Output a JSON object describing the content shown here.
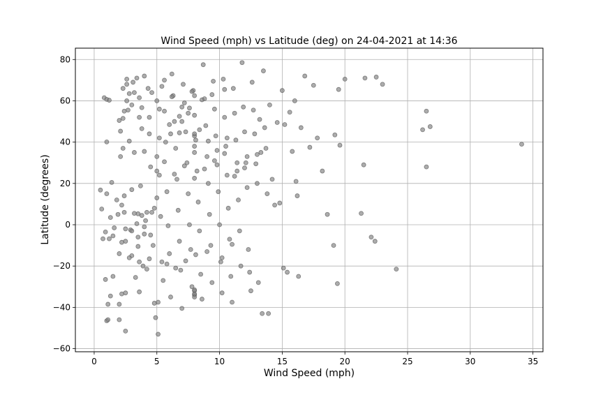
{
  "chart_data": {
    "type": "scatter",
    "title": "Wind Speed (mph) vs Latitude (deg) on 24-04-2021 at 14:36",
    "xlabel": "Wind Speed (mph)",
    "ylabel": "Latitude (degrees)",
    "xlim": [
      -1.5,
      35.8
    ],
    "ylim": [
      -61.5,
      85.5
    ],
    "xticks": [
      0,
      5,
      10,
      15,
      20,
      25,
      30,
      35
    ],
    "yticks": [
      -60,
      -40,
      -20,
      0,
      20,
      40,
      60,
      80
    ],
    "grid": true,
    "marker_color": "#808080",
    "points": [
      [
        0.5,
        16.8
      ],
      [
        0.6,
        7.6
      ],
      [
        0.7,
        -6.8
      ],
      [
        0.8,
        61.5
      ],
      [
        0.9,
        -26.5
      ],
      [
        0.9,
        -3.5
      ],
      [
        1.0,
        60.7
      ],
      [
        1.0,
        40.1
      ],
      [
        1.0,
        15.0
      ],
      [
        1.0,
        -46.5
      ],
      [
        1.1,
        -46.0
      ],
      [
        1.1,
        -38.5
      ],
      [
        1.2,
        -6.8
      ],
      [
        1.2,
        60.3
      ],
      [
        1.3,
        3.5
      ],
      [
        1.3,
        -34.5
      ],
      [
        1.4,
        20.5
      ],
      [
        1.5,
        -5.4
      ],
      [
        1.5,
        -25.0
      ],
      [
        1.6,
        -1.5
      ],
      [
        1.8,
        12.0
      ],
      [
        1.9,
        5.0
      ],
      [
        2.0,
        -14.0
      ],
      [
        2.0,
        -38.5
      ],
      [
        2.0,
        -46.0
      ],
      [
        2.1,
        45.3
      ],
      [
        2.1,
        33.0
      ],
      [
        2.2,
        9.5
      ],
      [
        2.2,
        -33.5
      ],
      [
        2.3,
        66.0
      ],
      [
        2.3,
        51.5
      ],
      [
        2.3,
        37.0
      ],
      [
        2.4,
        14.0
      ],
      [
        2.4,
        6.0
      ],
      [
        2.5,
        -8.0
      ],
      [
        2.5,
        -33.0
      ],
      [
        2.5,
        -51.5
      ],
      [
        2.6,
        70.5
      ],
      [
        2.6,
        60.0
      ],
      [
        2.7,
        55.5
      ],
      [
        2.8,
        63.5
      ],
      [
        2.8,
        40.5
      ],
      [
        2.9,
        -2.5
      ],
      [
        3.0,
        17.0
      ],
      [
        3.0,
        -15.0
      ],
      [
        3.1,
        69.0
      ],
      [
        3.2,
        64.0
      ],
      [
        3.2,
        35.0
      ],
      [
        3.3,
        -25.5
      ],
      [
        3.4,
        0.5
      ],
      [
        3.5,
        5.3
      ],
      [
        3.5,
        -10.5
      ],
      [
        3.6,
        52.0
      ],
      [
        3.6,
        -32.5
      ],
      [
        3.7,
        18.8
      ],
      [
        3.8,
        56.7
      ],
      [
        3.8,
        46.5
      ],
      [
        3.9,
        -20.0
      ],
      [
        4.0,
        72.0
      ],
      [
        4.0,
        35.5
      ],
      [
        4.0,
        -4.5
      ],
      [
        4.1,
        2.0
      ],
      [
        4.2,
        -21.5
      ],
      [
        4.3,
        66.0
      ],
      [
        4.4,
        44.0
      ],
      [
        4.5,
        28.0
      ],
      [
        4.6,
        6.0
      ],
      [
        4.7,
        -10.0
      ],
      [
        4.8,
        -38.0
      ],
      [
        4.9,
        -45.0
      ],
      [
        5.0,
        60.0
      ],
      [
        5.0,
        33.0
      ],
      [
        5.0,
        13.0
      ],
      [
        5.1,
        -53.0
      ],
      [
        5.1,
        -37.5
      ],
      [
        5.2,
        42.0
      ],
      [
        5.2,
        24.0
      ],
      [
        5.3,
        4.0
      ],
      [
        5.4,
        -18.0
      ],
      [
        5.5,
        -27.0
      ],
      [
        5.6,
        70.0
      ],
      [
        5.6,
        55.0
      ],
      [
        5.7,
        40.0
      ],
      [
        5.8,
        16.0
      ],
      [
        5.9,
        -0.5
      ],
      [
        6.0,
        -14.0
      ],
      [
        6.1,
        -35.0
      ],
      [
        6.2,
        73.0
      ],
      [
        6.3,
        62.5
      ],
      [
        6.4,
        50.0
      ],
      [
        6.5,
        37.0
      ],
      [
        6.6,
        22.0
      ],
      [
        6.7,
        7.0
      ],
      [
        6.8,
        -8.0
      ],
      [
        6.9,
        -22.0
      ],
      [
        7.0,
        -40.5
      ],
      [
        7.1,
        68.0
      ],
      [
        7.2,
        59.0
      ],
      [
        7.3,
        45.0
      ],
      [
        7.4,
        30.0
      ],
      [
        7.5,
        15.0
      ],
      [
        7.6,
        0.0
      ],
      [
        7.7,
        -12.0
      ],
      [
        7.8,
        -30.0
      ],
      [
        7.9,
        65.0
      ],
      [
        8.0,
        53.0
      ],
      [
        8.1,
        41.0
      ],
      [
        8.2,
        26.0
      ],
      [
        8.3,
        11.0
      ],
      [
        8.4,
        -3.0
      ],
      [
        8.5,
        -24.0
      ],
      [
        8.6,
        -36.0
      ],
      [
        8.7,
        77.5
      ],
      [
        8.8,
        61.0
      ],
      [
        8.9,
        48.0
      ],
      [
        9.0,
        33.0
      ],
      [
        9.1,
        20.0
      ],
      [
        9.2,
        5.0
      ],
      [
        9.3,
        -10.0
      ],
      [
        9.4,
        -28.0
      ],
      [
        9.5,
        69.5
      ],
      [
        9.6,
        56.0
      ],
      [
        9.7,
        43.0
      ],
      [
        9.8,
        29.0
      ],
      [
        9.9,
        16.0
      ],
      [
        10.0,
        0.0
      ],
      [
        10.1,
        -18.0
      ],
      [
        10.2,
        -33.0
      ],
      [
        10.3,
        70.5
      ],
      [
        10.4,
        52.0
      ],
      [
        10.5,
        38.0
      ],
      [
        10.6,
        24.0
      ],
      [
        10.7,
        8.0
      ],
      [
        10.8,
        -7.0
      ],
      [
        10.9,
        -25.0
      ],
      [
        11.0,
        -37.5
      ],
      [
        11.1,
        66.0
      ],
      [
        11.2,
        54.0
      ],
      [
        11.3,
        41.0
      ],
      [
        11.4,
        26.0
      ],
      [
        11.5,
        12.0
      ],
      [
        11.6,
        -3.0
      ],
      [
        11.7,
        -20.0
      ],
      [
        11.8,
        78.5
      ],
      [
        11.9,
        57.0
      ],
      [
        12.0,
        45.0
      ],
      [
        12.1,
        30.0
      ],
      [
        12.2,
        18.0
      ],
      [
        12.3,
        -12.0
      ],
      [
        12.4,
        -23.0
      ],
      [
        12.5,
        -32.0
      ],
      [
        12.6,
        69.0
      ],
      [
        12.7,
        55.5
      ],
      [
        12.8,
        44.0
      ],
      [
        12.9,
        29.5
      ],
      [
        13.0,
        20.0
      ],
      [
        13.1,
        -28.0
      ],
      [
        13.2,
        51.0
      ],
      [
        13.3,
        35.0
      ],
      [
        13.4,
        -43.0
      ],
      [
        13.5,
        74.5
      ],
      [
        13.6,
        47.0
      ],
      [
        13.7,
        37.0
      ],
      [
        13.8,
        15.0
      ],
      [
        13.9,
        -43.0
      ],
      [
        14.0,
        58.0
      ],
      [
        14.2,
        22.0
      ],
      [
        14.4,
        9.5
      ],
      [
        14.6,
        49.5
      ],
      [
        14.8,
        10.5
      ],
      [
        15.0,
        65.0
      ],
      [
        15.1,
        -21.0
      ],
      [
        15.2,
        48.5
      ],
      [
        15.4,
        -23.0
      ],
      [
        15.6,
        54.5
      ],
      [
        15.8,
        35.5
      ],
      [
        16.0,
        60.0
      ],
      [
        16.1,
        21.0
      ],
      [
        16.2,
        14.0
      ],
      [
        16.3,
        -25.0
      ],
      [
        16.5,
        47.0
      ],
      [
        16.8,
        72.0
      ],
      [
        17.2,
        37.5
      ],
      [
        17.5,
        67.5
      ],
      [
        17.8,
        42.0
      ],
      [
        18.2,
        26.0
      ],
      [
        18.6,
        5.0
      ],
      [
        19.1,
        -10.0
      ],
      [
        19.2,
        43.5
      ],
      [
        19.4,
        -28.5
      ],
      [
        19.5,
        65.5
      ],
      [
        19.6,
        38.5
      ],
      [
        20.0,
        70.5
      ],
      [
        21.3,
        5.5
      ],
      [
        21.5,
        29.0
      ],
      [
        21.6,
        71.0
      ],
      [
        22.1,
        -6.0
      ],
      [
        22.4,
        -8.0
      ],
      [
        22.5,
        71.5
      ],
      [
        23.0,
        68.0
      ],
      [
        24.1,
        -21.5
      ],
      [
        26.2,
        46.0
      ],
      [
        26.5,
        55.0
      ],
      [
        26.5,
        28.0
      ],
      [
        26.8,
        47.5
      ],
      [
        34.1,
        39.0
      ],
      [
        2.2,
        -8.5
      ],
      [
        2.5,
        -2.0
      ],
      [
        3.0,
        -3.0
      ],
      [
        3.5,
        -6.0
      ],
      [
        4.0,
        -1.0
      ],
      [
        4.5,
        -5.0
      ],
      [
        3.2,
        5.5
      ],
      [
        3.8,
        4.5
      ],
      [
        4.2,
        6.0
      ],
      [
        4.8,
        8.0
      ],
      [
        2.8,
        -16.0
      ],
      [
        3.6,
        -18.0
      ],
      [
        4.4,
        -16.5
      ],
      [
        5.8,
        -19.0
      ],
      [
        6.5,
        -21.0
      ],
      [
        7.3,
        -17.5
      ],
      [
        8.1,
        -14.5
      ],
      [
        9.0,
        -13.0
      ],
      [
        10.2,
        -16.0
      ],
      [
        11.0,
        -9.5
      ],
      [
        2.0,
        50.5
      ],
      [
        2.4,
        55.0
      ],
      [
        3.0,
        58.0
      ],
      [
        3.6,
        61.5
      ],
      [
        4.4,
        52.0
      ],
      [
        5.2,
        56.0
      ],
      [
        6.0,
        48.5
      ],
      [
        6.8,
        52.5
      ],
      [
        7.6,
        56.5
      ],
      [
        8.4,
        46.0
      ],
      [
        2.6,
        68.0
      ],
      [
        3.4,
        71.0
      ],
      [
        4.6,
        64.0
      ],
      [
        5.4,
        67.0
      ],
      [
        6.2,
        62.0
      ],
      [
        7.0,
        57.0
      ],
      [
        7.8,
        64.5
      ],
      [
        8.6,
        60.5
      ],
      [
        9.4,
        63.0
      ],
      [
        10.4,
        65.5
      ],
      [
        5.0,
        26.0
      ],
      [
        5.6,
        30.5
      ],
      [
        6.4,
        24.5
      ],
      [
        7.2,
        28.5
      ],
      [
        8.0,
        22.5
      ],
      [
        8.8,
        27.0
      ],
      [
        9.6,
        31.0
      ],
      [
        10.4,
        34.5
      ],
      [
        11.2,
        23.5
      ],
      [
        12.0,
        27.5
      ],
      [
        8.0,
        -32.0
      ],
      [
        8.0,
        -34.0
      ],
      [
        8.0,
        -33.5
      ],
      [
        8.0,
        -35.0
      ],
      [
        8.0,
        -31.5
      ],
      [
        8.0,
        35.0
      ],
      [
        8.0,
        38.0
      ],
      [
        8.0,
        43.0
      ],
      [
        8.0,
        44.0
      ],
      [
        8.0,
        62.5
      ],
      [
        6.1,
        44.0
      ],
      [
        6.8,
        44.5
      ],
      [
        7.0,
        50.0
      ],
      [
        7.5,
        54.0
      ],
      [
        9.1,
        40.5
      ],
      [
        9.8,
        36.0
      ],
      [
        10.6,
        42.0
      ],
      [
        11.4,
        30.0
      ],
      [
        12.2,
        33.0
      ],
      [
        13.0,
        34.0
      ]
    ]
  }
}
